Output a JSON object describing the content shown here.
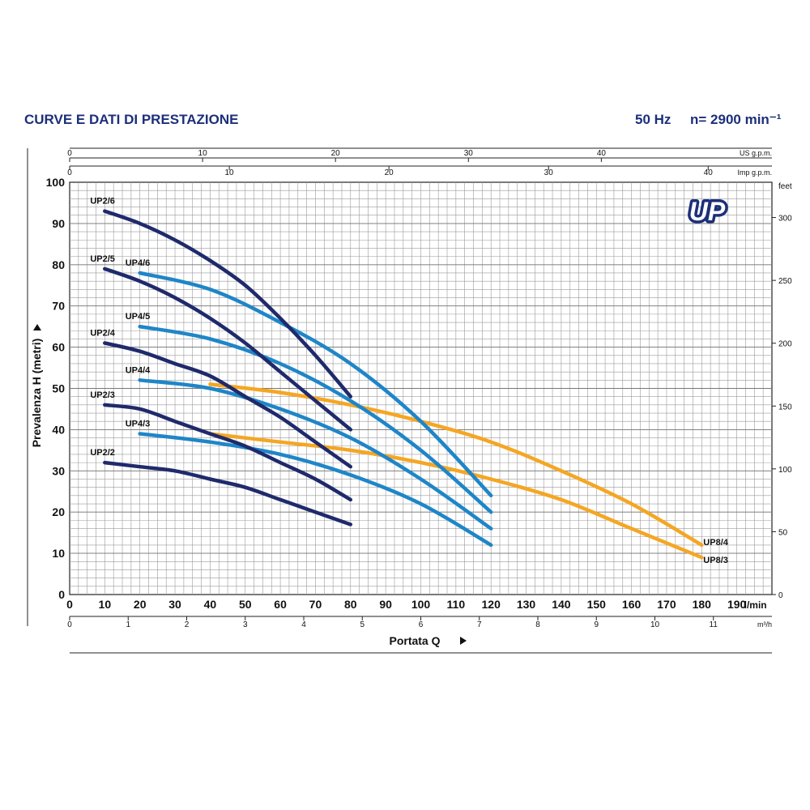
{
  "header": {
    "title": "CURVE E DATI DI PRESTAZIONE",
    "frequency": "50 Hz",
    "speed": "n= 2900 min⁻¹"
  },
  "brand_logo": "UP",
  "colors": {
    "grid": "#9a9a9a",
    "text": "#111111",
    "header": "#1c2f7a",
    "UP2": "#1f2a6c",
    "UP4": "#1e86c8",
    "UP8": "#f5a623"
  },
  "chart_data": {
    "type": "line",
    "title": "",
    "xlabel": "Portata Q",
    "ylabel": "Prevalenza H (metri)",
    "xlim": [
      0,
      200
    ],
    "ylim": [
      0,
      100
    ],
    "grid": true,
    "x_ticks": [
      0,
      10,
      20,
      30,
      40,
      50,
      60,
      70,
      80,
      90,
      100,
      110,
      120,
      130,
      140,
      150,
      160,
      170,
      180,
      190
    ],
    "x_unit": "l/min",
    "y_ticks": [
      0,
      10,
      20,
      30,
      40,
      50,
      60,
      70,
      80,
      90,
      100
    ],
    "secondary_axes": {
      "bottom_m3h": {
        "unit": "m³/h",
        "ticks": [
          0,
          1,
          2,
          3,
          4,
          5,
          6,
          7,
          8,
          9,
          10,
          11
        ]
      },
      "top_us_gpm": {
        "unit": "US g.p.m.",
        "ticks": [
          0,
          10,
          20,
          30,
          40
        ]
      },
      "top_imp_gpm": {
        "unit": "Imp g.p.m.",
        "ticks": [
          0,
          10,
          20,
          30,
          40
        ]
      },
      "right_feet": {
        "unit": "feet",
        "ticks": [
          0,
          50,
          100,
          150,
          200,
          250,
          300
        ]
      }
    },
    "series": [
      {
        "name": "UP2/6",
        "group": "UP2",
        "label_pos": "above-start",
        "x": [
          10,
          20,
          30,
          40,
          50,
          60,
          70,
          80
        ],
        "y": [
          93,
          90,
          86,
          81,
          75,
          67,
          58,
          48
        ]
      },
      {
        "name": "UP2/5",
        "group": "UP2",
        "label_pos": "above-start",
        "x": [
          10,
          20,
          30,
          40,
          50,
          60,
          70,
          80
        ],
        "y": [
          79,
          76,
          72,
          67,
          61,
          54,
          47,
          40
        ]
      },
      {
        "name": "UP2/4",
        "group": "UP2",
        "label_pos": "above-start",
        "x": [
          10,
          20,
          30,
          40,
          50,
          60,
          70,
          80
        ],
        "y": [
          61,
          59,
          56,
          53,
          48,
          43,
          37,
          31
        ]
      },
      {
        "name": "UP2/3",
        "group": "UP2",
        "label_pos": "above-start",
        "x": [
          10,
          20,
          30,
          40,
          50,
          60,
          70,
          80
        ],
        "y": [
          46,
          45,
          42,
          39,
          36,
          32,
          28,
          23
        ]
      },
      {
        "name": "UP2/2",
        "group": "UP2",
        "label_pos": "above-start",
        "x": [
          10,
          20,
          30,
          40,
          50,
          60,
          70,
          80
        ],
        "y": [
          32,
          31,
          30,
          28,
          26,
          23,
          20,
          17
        ]
      },
      {
        "name": "UP4/6",
        "group": "UP4",
        "label_pos": "above-start",
        "x": [
          20,
          40,
          60,
          80,
          100,
          120
        ],
        "y": [
          78,
          74,
          66,
          56,
          42,
          24
        ]
      },
      {
        "name": "UP4/5",
        "group": "UP4",
        "label_pos": "above-start",
        "x": [
          20,
          40,
          60,
          80,
          100,
          120
        ],
        "y": [
          65,
          62,
          56,
          47,
          35,
          20
        ]
      },
      {
        "name": "UP4/4",
        "group": "UP4",
        "label_pos": "above-start",
        "x": [
          20,
          40,
          60,
          80,
          100,
          120
        ],
        "y": [
          52,
          50,
          45,
          38,
          28,
          16
        ]
      },
      {
        "name": "UP4/3",
        "group": "UP4",
        "label_pos": "above-start",
        "x": [
          20,
          40,
          60,
          80,
          100,
          120
        ],
        "y": [
          39,
          37,
          34,
          29,
          22,
          12
        ]
      },
      {
        "name": "UP8/4",
        "group": "UP8",
        "label_pos": "right-end",
        "x": [
          40,
          60,
          80,
          100,
          120,
          140,
          160,
          180
        ],
        "y": [
          51,
          49,
          46,
          42,
          37,
          30,
          22,
          12
        ]
      },
      {
        "name": "UP8/3",
        "group": "UP8",
        "label_pos": "right-end",
        "x": [
          40,
          60,
          80,
          100,
          120,
          140,
          160,
          180
        ],
        "y": [
          39,
          37,
          35,
          32,
          28,
          23,
          16,
          9
        ]
      }
    ]
  }
}
